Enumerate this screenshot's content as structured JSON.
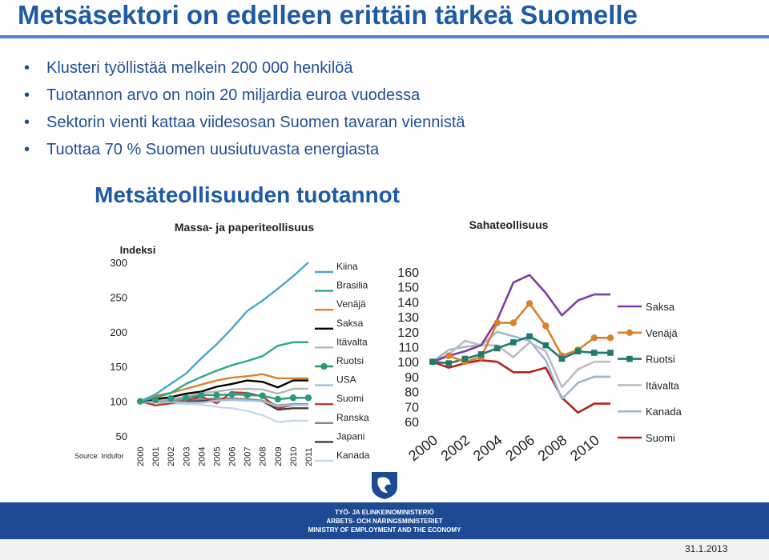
{
  "title": "Metsäsektori on edelleen erittäin tärkeä Suomelle",
  "bullets": [
    "Klusteri työllistää melkein 200 000 henkilöä",
    "Tuotannon arvo on noin 20 miljardia euroa vuodessa",
    "Sektorin vienti kattaa viidesosan Suomen tavaran viennistä",
    "Tuottaa 70 % Suomen uusiutuvasta energiasta"
  ],
  "subtitle": "Metsäteollisuuden tuotannot",
  "footer": {
    "lines": [
      "TYÖ- JA ELINKEINOMINISTERIÖ",
      "ARBETS- OCH NÄRINGSMINISTERIET",
      "MINISTRY OF EMPLOYMENT AND THE ECONOMY"
    ],
    "date": "31.1.2013"
  },
  "chart_data": [
    {
      "type": "line",
      "title": "Massa- ja paperiteollisuus",
      "ylabel": "Indeksi",
      "source": "Source: Indufor",
      "x": [
        "2000",
        "2001",
        "2002",
        "2003",
        "2004",
        "2005",
        "2006",
        "2007",
        "2008",
        "2009",
        "2010",
        "2011"
      ],
      "ylim": [
        50,
        300
      ],
      "yticks": [
        300,
        250,
        200,
        150,
        100,
        50
      ],
      "legend_position": "right",
      "series": [
        {
          "name": "Kiina",
          "color": "#4aa7c4",
          "marker": "none",
          "values": [
            100,
            110,
            125,
            140,
            162,
            182,
            205,
            230,
            245,
            262,
            280,
            300
          ]
        },
        {
          "name": "Brasilia",
          "color": "#2ea58a",
          "marker": "none",
          "values": [
            100,
            105,
            112,
            125,
            135,
            144,
            152,
            158,
            165,
            180,
            185,
            185
          ]
        },
        {
          "name": "Venäjä",
          "color": "#d9822b",
          "marker": "none",
          "values": [
            100,
            108,
            112,
            118,
            124,
            130,
            134,
            136,
            139,
            133,
            133,
            133
          ]
        },
        {
          "name": "Saksa",
          "color": "#000000",
          "marker": "none",
          "values": [
            100,
            103,
            106,
            111,
            114,
            121,
            125,
            130,
            128,
            120,
            130,
            130
          ]
        },
        {
          "name": "Itävalta",
          "color": "#b7b7b7",
          "marker": "none",
          "values": [
            100,
            102,
            103,
            107,
            112,
            114,
            117,
            118,
            117,
            111,
            118,
            118
          ]
        },
        {
          "name": "Ruotsi",
          "color": "#2a9a7e",
          "marker": "circle",
          "values": [
            100,
            102,
            104,
            105,
            109,
            109,
            110,
            109,
            108,
            103,
            105,
            105
          ]
        },
        {
          "name": "USA",
          "color": "#a7bedb",
          "marker": "none",
          "values": [
            100,
            98,
            99,
            98,
            98,
            101,
            102,
            101,
            100,
            93,
            95,
            95
          ]
        },
        {
          "name": "Suomi",
          "color": "#c0392b",
          "marker": "none",
          "values": [
            100,
            94,
            97,
            101,
            107,
            97,
            113,
            112,
            107,
            90,
            95,
            95
          ]
        },
        {
          "name": "Ranska",
          "color": "#888888",
          "marker": "none",
          "values": [
            100,
            100,
            101,
            102,
            103,
            104,
            104,
            103,
            101,
            94,
            96,
            96
          ]
        },
        {
          "name": "Japani",
          "color": "#3b3b3b",
          "marker": "none",
          "values": [
            100,
            98,
            99,
            100,
            101,
            102,
            103,
            102,
            100,
            88,
            90,
            90
          ]
        },
        {
          "name": "Kanada",
          "color": "#c8d8ea",
          "marker": "none",
          "values": [
            100,
            98,
            97,
            96,
            95,
            92,
            90,
            86,
            80,
            70,
            72,
            72
          ]
        }
      ]
    },
    {
      "type": "line",
      "title": "Sahateollisuus",
      "x": [
        "2000",
        "2001",
        "2002",
        "2003",
        "2004",
        "2005",
        "2006",
        "2007",
        "2008",
        "2009",
        "2010",
        "2011"
      ],
      "xtick_labels": [
        "2000",
        "2002",
        "2004",
        "2006",
        "2008",
        "2010"
      ],
      "ylim": [
        60,
        160
      ],
      "yticks": [
        160,
        150,
        140,
        130,
        120,
        110,
        100,
        90,
        80,
        70,
        60
      ],
      "legend_position": "right",
      "series": [
        {
          "name": "Saksa",
          "color": "#7b3fa0",
          "marker": "none",
          "values": [
            100,
            104,
            107,
            111,
            128,
            153,
            158,
            146,
            131,
            141,
            145,
            145
          ]
        },
        {
          "name": "Venäjä",
          "color": "#d9822b",
          "marker": "circle",
          "values": [
            100,
            104,
            100,
            103,
            126,
            126,
            139,
            124,
            104,
            108,
            116,
            116
          ]
        },
        {
          "name": "Ruotsi",
          "color": "#1f7a6b",
          "marker": "square",
          "values": [
            100,
            99,
            102,
            105,
            109,
            113,
            117,
            111,
            102,
            107,
            106,
            106
          ]
        },
        {
          "name": "Itävalta",
          "color": "#bdbdbd",
          "marker": "none",
          "values": [
            100,
            105,
            114,
            111,
            111,
            103,
            113,
            107,
            83,
            95,
            100,
            100
          ]
        },
        {
          "name": "Kanada",
          "color": "#9fb6d3",
          "marker": "none",
          "values": [
            100,
            108,
            110,
            111,
            120,
            117,
            114,
            101,
            75,
            86,
            90,
            90
          ]
        },
        {
          "name": "Suomi",
          "color": "#b22222",
          "marker": "none",
          "values": [
            100,
            96,
            99,
            101,
            100,
            93,
            93,
            96,
            76,
            66,
            72,
            72
          ]
        }
      ]
    }
  ]
}
